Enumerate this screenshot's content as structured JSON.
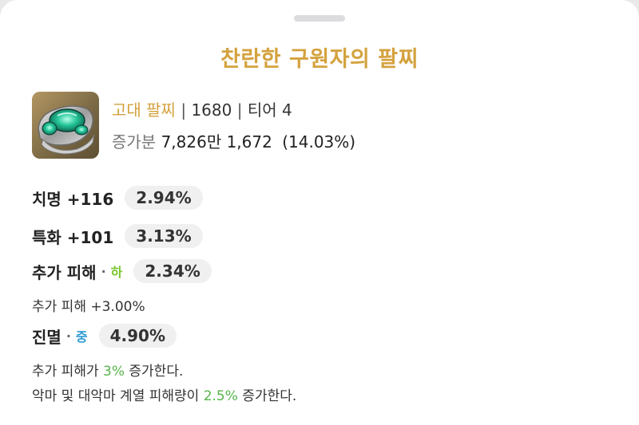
{
  "title": "찬란한 구원자의 팔찌",
  "item": {
    "grade": "고대 팔찌",
    "separator": "|",
    "item_level": "1680",
    "tier": "티어 4",
    "gain_label": "증가분",
    "gain_value": "7,826만 1,672",
    "gain_percent": "(14.03%)"
  },
  "stats": [
    {
      "name": "치명 +116",
      "percent": "2.94%"
    },
    {
      "name": "특화 +101",
      "percent": "3.13%"
    }
  ],
  "effects": {
    "add_damage": {
      "name": "추가 피해",
      "dot": "·",
      "grade": "하",
      "percent": "2.34%",
      "detail": "추가 피해 +3.00%"
    },
    "annihilation": {
      "name": "진멸",
      "dot": "·",
      "grade": "중",
      "percent": "4.90%"
    }
  },
  "descriptions": {
    "line1_pre": "추가 피해가 ",
    "line1_val": "3%",
    "line1_post": " 증가한다.",
    "line2_pre": "악마 및 대악마 계열 피해량이 ",
    "line2_val": "2.5%",
    "line2_post": " 증가한다."
  },
  "colors": {
    "title": "#d4a23e",
    "grade_low": "#7ac62e",
    "grade_mid": "#2e9bd6",
    "highlight": "#57b44a"
  },
  "icons": {
    "item": "bracelet-icon"
  }
}
